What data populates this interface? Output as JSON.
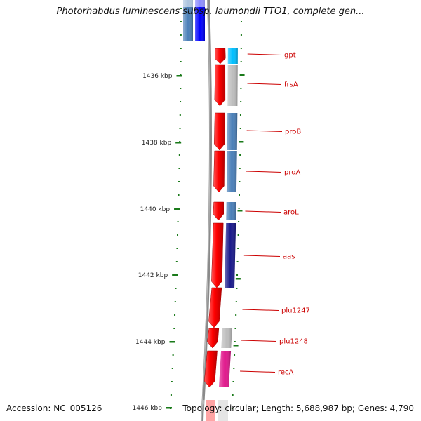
{
  "title": "Photorhabdus luminescens subsp. laumondii TTO1, complete gen...",
  "accession": "Accession: NC_005126",
  "topology": "Topology: circular; Length: 5,688,987 bp; Genes: 4,790",
  "colors": {
    "backbone": "#8a8a8a",
    "tick": "#1a7a1a",
    "label": "#cc0000",
    "leader": "#cc0000",
    "forward_gene": "#ff0000",
    "cog_light_blue": "#00bfff",
    "cog_grey": "#bdbdbd",
    "cog_steel_blue": "#4a7fb8",
    "cog_navy": "#1a1a8c",
    "cog_magenta": "#e0188c",
    "cog_blue": "#0000ff"
  },
  "kbp_ticks": [
    {
      "label": "1436 kbp"
    },
    {
      "label": "1438 kbp"
    },
    {
      "label": "1440 kbp"
    },
    {
      "label": "1442 kbp"
    },
    {
      "label": "1444 kbp"
    },
    {
      "label": "1446 kbp"
    }
  ],
  "genes": [
    {
      "name": "gpt",
      "cog_color": "#00bfff"
    },
    {
      "name": "frsA",
      "cog_color": "#bdbdbd"
    },
    {
      "name": "proB",
      "cog_color": "#4a7fb8"
    },
    {
      "name": "proA",
      "cog_color": "#4a7fb8"
    },
    {
      "name": "aroL",
      "cog_color": "#4a7fb8"
    },
    {
      "name": "aas",
      "cog_color": "#1a1a8c"
    },
    {
      "name": "plu1247",
      "cog_color": null
    },
    {
      "name": "plu1248",
      "cog_color": "#bdbdbd"
    },
    {
      "name": "recA",
      "cog_color": "#e0188c"
    }
  ]
}
